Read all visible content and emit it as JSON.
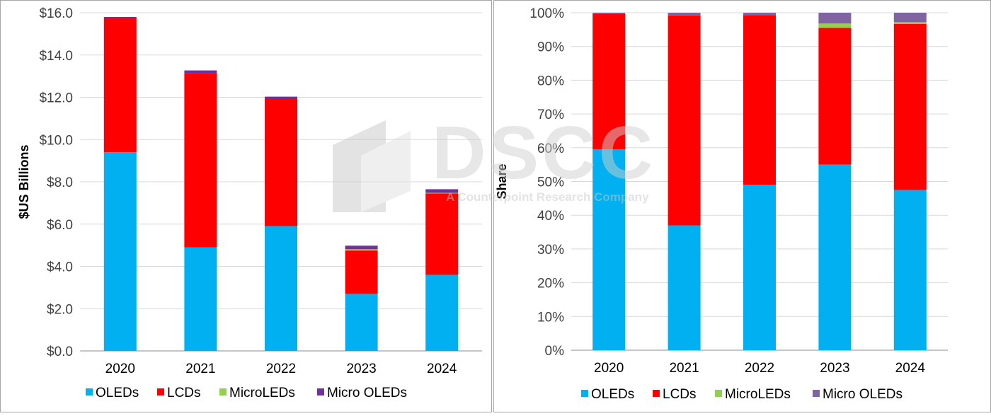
{
  "colors": {
    "oleds": "#00b0f0",
    "lcds": "#ff0000",
    "microleds": "#92d050",
    "micro_oleds_left": "#7030a0",
    "micro_oleds_right": "#8064a2",
    "grid": "#d9d9d9",
    "axis": "#404040",
    "watermark": "#bfbfbf"
  },
  "watermark": {
    "brand": "DSCC",
    "tagline": "A Counterpoint Research Company"
  },
  "chart_data": [
    {
      "type": "bar",
      "stacked": true,
      "title": "",
      "xlabel": "",
      "ylabel": "$US Billions",
      "ylim": [
        0,
        16
      ],
      "yticks": [
        "$0.0",
        "$2.0",
        "$4.0",
        "$6.0",
        "$8.0",
        "$10.0",
        "$12.0",
        "$14.0",
        "$16.0"
      ],
      "categories": [
        "2020",
        "2021",
        "2022",
        "2023",
        "2024"
      ],
      "grid": true,
      "legend_position": "bottom",
      "series": [
        {
          "name": "OLEDs",
          "values": [
            9.4,
            4.9,
            5.9,
            2.7,
            3.6
          ]
        },
        {
          "name": "LCDs",
          "values": [
            6.35,
            8.25,
            6.05,
            2.05,
            3.85
          ]
        },
        {
          "name": "MicroLEDs",
          "values": [
            0.0,
            0.0,
            0.0,
            0.06,
            0.03
          ]
        },
        {
          "name": "Micro OLEDs",
          "values": [
            0.05,
            0.12,
            0.08,
            0.17,
            0.17
          ]
        }
      ]
    },
    {
      "type": "bar",
      "stacked": true,
      "title": "",
      "xlabel": "",
      "ylabel": "Share",
      "ylim": [
        0,
        100
      ],
      "yticks": [
        "0%",
        "10%",
        "20%",
        "30%",
        "40%",
        "50%",
        "60%",
        "70%",
        "80%",
        "90%",
        "100%"
      ],
      "categories": [
        "2020",
        "2021",
        "2022",
        "2023",
        "2024"
      ],
      "grid": true,
      "legend_position": "bottom",
      "series": [
        {
          "name": "OLEDs",
          "values": [
            59.5,
            37.0,
            49.0,
            55.0,
            47.5
          ]
        },
        {
          "name": "LCDs",
          "values": [
            40.2,
            62.2,
            50.3,
            40.5,
            49.2
          ]
        },
        {
          "name": "MicroLEDs",
          "values": [
            0.0,
            0.0,
            0.0,
            1.3,
            0.5
          ]
        },
        {
          "name": "Micro OLEDs",
          "values": [
            0.3,
            0.8,
            0.7,
            3.2,
            2.8
          ]
        }
      ]
    }
  ]
}
